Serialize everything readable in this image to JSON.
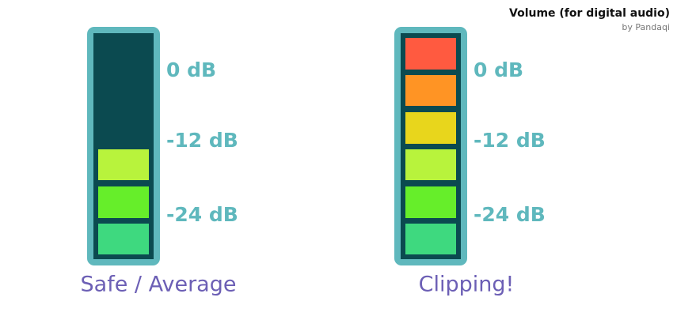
{
  "header": {
    "title": "Volume (for digital audio)",
    "byline": "by Pandaqi"
  },
  "meters": [
    {
      "label": "Safe / Average",
      "db_labels": [
        "0 dB",
        "-12 dB",
        "-24 dB"
      ]
    },
    {
      "label": "Clipping!",
      "db_labels": [
        "0 dB",
        "-12 dB",
        "-24 dB"
      ]
    }
  ]
}
